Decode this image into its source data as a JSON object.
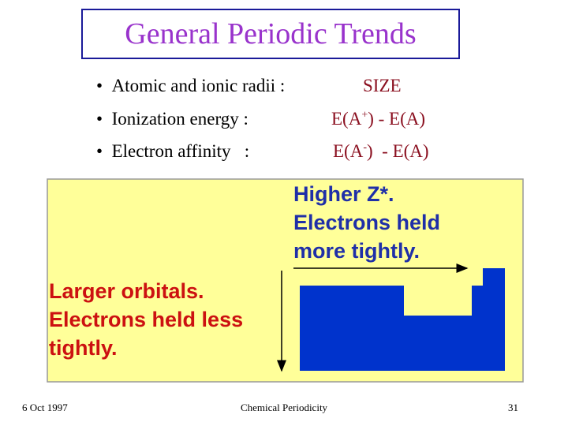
{
  "header": {
    "title": "General Periodic Trends"
  },
  "bullets": [
    {
      "label": "Atomic and ionic radii :",
      "value": [
        "SIZE"
      ]
    },
    {
      "label": "Ionization energy :",
      "value": [
        "E(A",
        "+",
        ") - E(A)"
      ]
    },
    {
      "label": "Electron affinity   :",
      "value": [
        "E(A",
        "-",
        ")  - E(A)"
      ]
    }
  ],
  "panel": {
    "right_text": [
      "Higher Z*.",
      "Electrons held",
      "more tightly."
    ],
    "left_text": [
      "Larger orbitals.",
      "Electrons held less",
      "tightly."
    ]
  },
  "footer": {
    "date": "6 Oct 1997",
    "center": "Chemical Periodicity",
    "page": "31"
  }
}
